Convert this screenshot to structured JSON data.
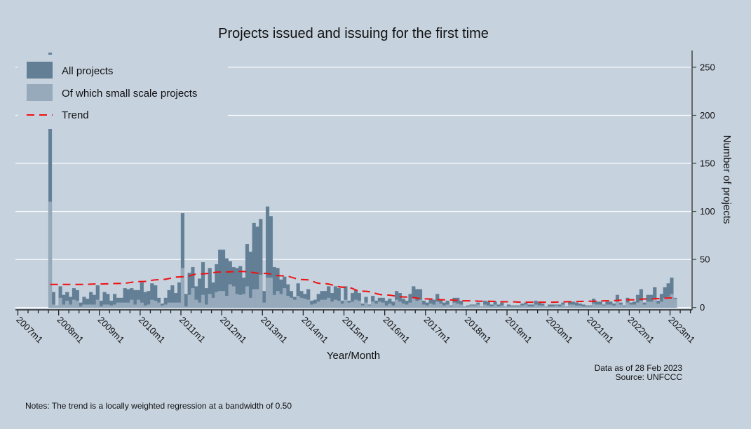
{
  "chart_data": {
    "type": "bar",
    "title": "Projects issued and issuing for the first time",
    "xlabel": "Year/Month",
    "ylabel": "Number of projects",
    "ylim": [
      0,
      267
    ],
    "yticks": [
      0,
      50,
      100,
      150,
      200,
      250
    ],
    "xticks": [
      "2007m1",
      "2008m1",
      "2009m1",
      "2010m1",
      "2011m1",
      "2012m1",
      "2013m1",
      "2014m1",
      "2015m1",
      "2016m1",
      "2017m1",
      "2018m1",
      "2019m1",
      "2020m1",
      "2021m1",
      "2022m1",
      "2023m1"
    ],
    "yaxis_position": "right",
    "grid": true,
    "legend_position": "top-left",
    "period": {
      "start": "2007m10",
      "end": "2023m2",
      "frequency": "monthly"
    },
    "colors": {
      "all": "#627f95",
      "small": "#97aabc",
      "trend": "#ee1111",
      "background": "#c6d2de",
      "grid": "#ffffff"
    },
    "series": [
      {
        "name": "All projects",
        "values": [
          265,
          16,
          2,
          22,
          13,
          16,
          11,
          20,
          18,
          5,
          11,
          9,
          16,
          13,
          23,
          7,
          16,
          14,
          7,
          14,
          10,
          10,
          20,
          19,
          20,
          18,
          18,
          26,
          16,
          17,
          25,
          23,
          10,
          4,
          10,
          18,
          23,
          15,
          26,
          98,
          14,
          36,
          42,
          22,
          30,
          47,
          20,
          41,
          26,
          45,
          60,
          60,
          51,
          48,
          42,
          41,
          43,
          31,
          66,
          58,
          88,
          84,
          92,
          17,
          105,
          95,
          42,
          41,
          29,
          32,
          24,
          17,
          11,
          25,
          17,
          14,
          19,
          7,
          8,
          14,
          17,
          17,
          22,
          15,
          22,
          20,
          7,
          22,
          7,
          15,
          18,
          15,
          4,
          11,
          3,
          12,
          7,
          10,
          10,
          7,
          9,
          6,
          17,
          15,
          9,
          7,
          14,
          22,
          19,
          19,
          7,
          5,
          8,
          8,
          14,
          8,
          5,
          7,
          2,
          10,
          10,
          7,
          1,
          2,
          3,
          3,
          5,
          1,
          7,
          6,
          3,
          6,
          3,
          5,
          1,
          3,
          2,
          2,
          2,
          4,
          5,
          3,
          3,
          7,
          5,
          4,
          1,
          3,
          3,
          3,
          3,
          5,
          1,
          6,
          6,
          5,
          4,
          3,
          2,
          2,
          9,
          6,
          6,
          3,
          6,
          6,
          4,
          13,
          5,
          2,
          10,
          5,
          6,
          13,
          19,
          5,
          13,
          13,
          21,
          7,
          14,
          21,
          25,
          31,
          10
        ]
      },
      {
        "name": "Of which small scale projects",
        "values": [
          110,
          3,
          2,
          10,
          3,
          7,
          3,
          8,
          7,
          1,
          3,
          3,
          3,
          3,
          8,
          1,
          3,
          3,
          2,
          3,
          5,
          5,
          5,
          5,
          8,
          3,
          8,
          5,
          2,
          3,
          8,
          7,
          5,
          2,
          3,
          5,
          5,
          5,
          5,
          41,
          1,
          13,
          20,
          8,
          5,
          13,
          3,
          14,
          10,
          16,
          17,
          17,
          12,
          24,
          22,
          14,
          13,
          14,
          22,
          10,
          19,
          19,
          34,
          5,
          31,
          31,
          13,
          17,
          14,
          20,
          12,
          10,
          8,
          12,
          10,
          9,
          8,
          3,
          4,
          6,
          8,
          8,
          10,
          6,
          8,
          7,
          4,
          8,
          5,
          6,
          8,
          7,
          2,
          5,
          2,
          6,
          4,
          6,
          5,
          2,
          4,
          2,
          8,
          6,
          4,
          3,
          5,
          10,
          7,
          8,
          3,
          2,
          4,
          3,
          6,
          4,
          2,
          3,
          1,
          5,
          4,
          3,
          1,
          1,
          2,
          2,
          3,
          1,
          3,
          2,
          1,
          3,
          1,
          2,
          1,
          1,
          1,
          1,
          1,
          2,
          3,
          1,
          1,
          3,
          2,
          2,
          1,
          1,
          1,
          2,
          1,
          3,
          1,
          3,
          3,
          2,
          2,
          1,
          1,
          1,
          4,
          3,
          3,
          2,
          3,
          3,
          2,
          6,
          3,
          1,
          5,
          3,
          3,
          5,
          7,
          3,
          6,
          6,
          9,
          4,
          6,
          10,
          11,
          14,
          9
        ]
      }
    ],
    "trend": {
      "name": "Trend",
      "points": [
        [
          "2007m10",
          24
        ],
        [
          "2008m6",
          24
        ],
        [
          "2009m1",
          24.5
        ],
        [
          "2009m6",
          25
        ],
        [
          "2010m1",
          27
        ],
        [
          "2010m6",
          29
        ],
        [
          "2011m1",
          32
        ],
        [
          "2011m6",
          35
        ],
        [
          "2012m1",
          37
        ],
        [
          "2012m6",
          37.5
        ],
        [
          "2013m1",
          35.5
        ],
        [
          "2013m6",
          33
        ],
        [
          "2014m1",
          29
        ],
        [
          "2014m6",
          25
        ],
        [
          "2015m1",
          21
        ],
        [
          "2015m6",
          17
        ],
        [
          "2016m1",
          13
        ],
        [
          "2016m6",
          11
        ],
        [
          "2017m1",
          9
        ],
        [
          "2017m6",
          8
        ],
        [
          "2018m1",
          7
        ],
        [
          "2018m6",
          6.5
        ],
        [
          "2019m1",
          6
        ],
        [
          "2019m6",
          5.5
        ],
        [
          "2020m1",
          5.5
        ],
        [
          "2020m6",
          6
        ],
        [
          "2021m1",
          6.5
        ],
        [
          "2021m6",
          7
        ],
        [
          "2022m1",
          8
        ],
        [
          "2022m6",
          9
        ],
        [
          "2023m2",
          10
        ]
      ]
    }
  },
  "legend": {
    "all_label": "All projects",
    "small_label": "Of which small scale projects",
    "trend_label": "Trend"
  },
  "notes": {
    "data_as_of": "Data as of 28 Feb 2023",
    "source": "Source: UNFCCC",
    "footnote": "Notes: The trend is a locally weighted regression at a bandwidth of 0.50"
  }
}
